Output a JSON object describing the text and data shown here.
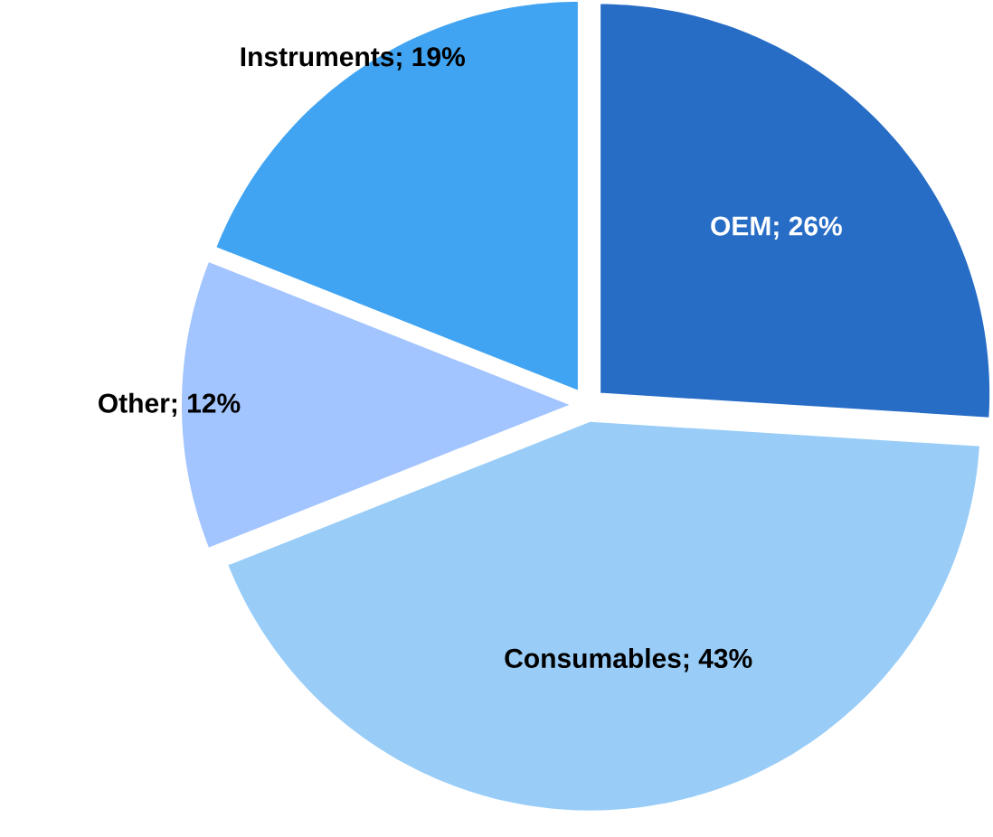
{
  "chart_data": {
    "type": "pie",
    "categories": [
      "OEM",
      "Consumables",
      "Other",
      "Instruments"
    ],
    "values": [
      26,
      43,
      12,
      19
    ],
    "value_labels": [
      "; 26%",
      "; 43%",
      "; 12%",
      "; 19%"
    ],
    "colors": [
      "#276dc6",
      "#99cdf8",
      "#a2c4ff",
      "#40a4f2"
    ]
  }
}
